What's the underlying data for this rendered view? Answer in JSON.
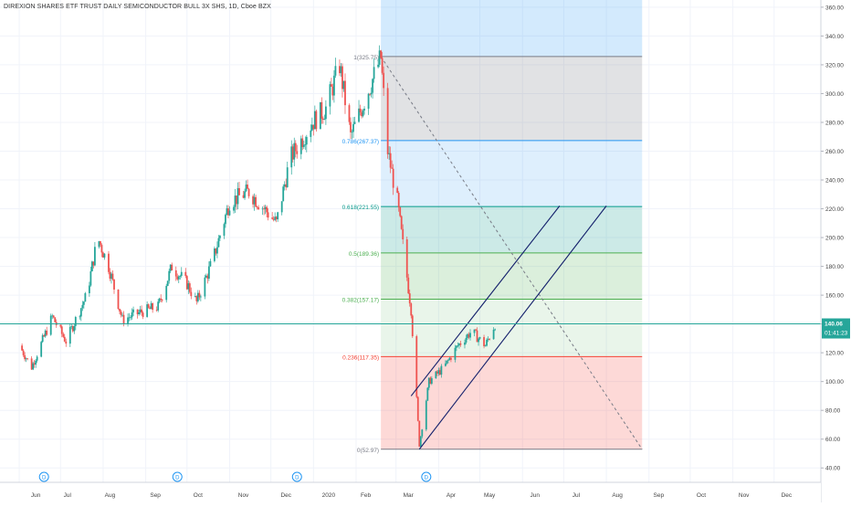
{
  "header": {
    "title": "DIREXION SHARES ETF TRUST DAILY SEMICONDUCTOR BULL 3X SHS, 1D, Cboe BZX"
  },
  "price_axis": {
    "ticks": [
      "360.00",
      "340.00",
      "320.00",
      "300.00",
      "280.00",
      "260.00",
      "240.00",
      "220.00",
      "200.00",
      "180.00",
      "160.00",
      "140.00",
      "120.00",
      "100.00",
      "80.00",
      "60.00",
      "40.00"
    ],
    "current_price": "140.06",
    "countdown": "01:41:23",
    "badge_color": "#26a69a"
  },
  "time_axis": {
    "labels": [
      "Jun",
      "Jul",
      "Aug",
      "Sep",
      "Oct",
      "Nov",
      "Dec",
      "2020",
      "Feb",
      "Mar",
      "Apr",
      "May",
      "Jun",
      "Jul",
      "Aug",
      "Sep",
      "Oct",
      "Nov",
      "Dec"
    ]
  },
  "dividend_markers": [
    "D",
    "D",
    "D",
    "D"
  ],
  "fib_levels": [
    {
      "label": "1(325.75)",
      "color": "#787b86"
    },
    {
      "label": "0.786(267.37)",
      "color": "#2196f3"
    },
    {
      "label": "0.618(221.55)",
      "color": "#009688"
    },
    {
      "label": "0.5(189.36)",
      "color": "#4caf50"
    },
    {
      "label": "0.382(157.17)",
      "color": "#4caf50"
    },
    {
      "label": "0.236(117.35)",
      "color": "#f44336"
    },
    {
      "label": "0(52.97)",
      "color": "#787b86"
    }
  ],
  "colors": {
    "up": "#26a69a",
    "down": "#ef5350",
    "channel": "#131f6b",
    "price_line": "#26a69a"
  },
  "chart_data": {
    "type": "candlestick",
    "title": "DIREXION SHARES ETF TRUST DAILY SEMICONDUCTOR BULL 3X SHS, 1D, Cboe BZX",
    "ylim": [
      30,
      365
    ],
    "last_price": 140.06,
    "series": [
      {
        "name": "price",
        "points": [
          {
            "x": "2019-06-01",
            "y": 125
          },
          {
            "x": "2019-06-10",
            "y": 110
          },
          {
            "x": "2019-06-25",
            "y": 145
          },
          {
            "x": "2019-07-05",
            "y": 128
          },
          {
            "x": "2019-07-20",
            "y": 160
          },
          {
            "x": "2019-07-28",
            "y": 200
          },
          {
            "x": "2019-08-05",
            "y": 180
          },
          {
            "x": "2019-08-15",
            "y": 143
          },
          {
            "x": "2019-08-28",
            "y": 148
          },
          {
            "x": "2019-09-10",
            "y": 152
          },
          {
            "x": "2019-09-20",
            "y": 180
          },
          {
            "x": "2019-10-01",
            "y": 168
          },
          {
            "x": "2019-10-08",
            "y": 155
          },
          {
            "x": "2019-10-20",
            "y": 185
          },
          {
            "x": "2019-11-01",
            "y": 225
          },
          {
            "x": "2019-11-15",
            "y": 232
          },
          {
            "x": "2019-11-28",
            "y": 218
          },
          {
            "x": "2019-12-05",
            "y": 210
          },
          {
            "x": "2019-12-15",
            "y": 255
          },
          {
            "x": "2019-12-31",
            "y": 280
          },
          {
            "x": "2020-01-10",
            "y": 290
          },
          {
            "x": "2020-01-20",
            "y": 320
          },
          {
            "x": "2020-01-28",
            "y": 270
          },
          {
            "x": "2020-02-05",
            "y": 290
          },
          {
            "x": "2020-02-19",
            "y": 325
          },
          {
            "x": "2020-02-24",
            "y": 260
          },
          {
            "x": "2020-03-02",
            "y": 225
          },
          {
            "x": "2020-03-12",
            "y": 150
          },
          {
            "x": "2020-03-18",
            "y": 56
          },
          {
            "x": "2020-03-25",
            "y": 100
          },
          {
            "x": "2020-04-05",
            "y": 110
          },
          {
            "x": "2020-04-15",
            "y": 125
          },
          {
            "x": "2020-04-25",
            "y": 135
          },
          {
            "x": "2020-05-05",
            "y": 125
          },
          {
            "x": "2020-05-12",
            "y": 140
          }
        ]
      }
    ],
    "fib_retracement": {
      "high": 325.75,
      "low": 52.97,
      "levels": [
        1,
        0.786,
        0.618,
        0.5,
        0.382,
        0.236,
        0
      ]
    },
    "channel": [
      {
        "from": {
          "x": "2020-03-12",
          "y": 90
        },
        "to": {
          "x": "2020-06-28",
          "y": 222
        }
      },
      {
        "from": {
          "x": "2020-03-18",
          "y": 53
        },
        "to": {
          "x": "2020-08-01",
          "y": 222
        }
      }
    ]
  }
}
